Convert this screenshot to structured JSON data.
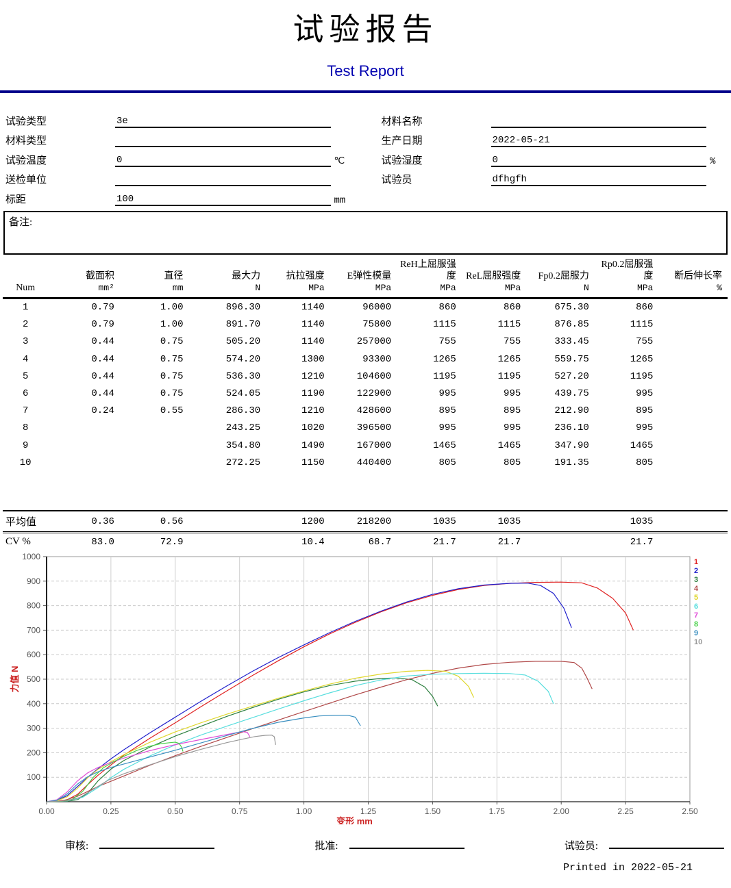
{
  "header": {
    "title_cn": "试验报告",
    "title_en": "Test Report",
    "divider_color": "#00008b"
  },
  "form": {
    "left": [
      {
        "label": "试验类型",
        "value": "3e",
        "unit": ""
      },
      {
        "label": "材料类型",
        "value": "",
        "unit": ""
      },
      {
        "label": "试验温度",
        "value": "0",
        "unit": "℃"
      },
      {
        "label": "送检单位",
        "value": "",
        "unit": ""
      },
      {
        "label": "标距",
        "value": "100",
        "unit": "mm"
      }
    ],
    "right": [
      {
        "label": "材料名称",
        "value": "",
        "unit": ""
      },
      {
        "label": "生产日期",
        "value": "2022-05-21",
        "unit": ""
      },
      {
        "label": "试验湿度",
        "value": "0",
        "unit": "%"
      },
      {
        "label": "试验员",
        "value": "dfhgfh",
        "unit": ""
      }
    ]
  },
  "remarks": {
    "label": "备注:"
  },
  "table": {
    "columns": [
      {
        "title": "Num",
        "unit": ""
      },
      {
        "title": "截面积",
        "unit": "mm²"
      },
      {
        "title": "直径",
        "unit": "mm"
      },
      {
        "title": "最大力",
        "unit": "N"
      },
      {
        "title": "抗拉强度",
        "unit": "MPa"
      },
      {
        "title": "E弹性模量",
        "unit": "MPa"
      },
      {
        "title": "ReH上屈服强度",
        "unit": "MPa"
      },
      {
        "title": "ReL屈服强度",
        "unit": "MPa"
      },
      {
        "title": "Fp0.2屈服力",
        "unit": "N"
      },
      {
        "title": "Rp0.2屈服强度",
        "unit": "MPa"
      },
      {
        "title": "断后伸长率",
        "unit": "%"
      }
    ],
    "rows": [
      [
        "1",
        "0.79",
        "1.00",
        "896.30",
        "1140",
        "96000",
        "860",
        "860",
        "675.30",
        "860",
        ""
      ],
      [
        "2",
        "0.79",
        "1.00",
        "891.70",
        "1140",
        "75800",
        "1115",
        "1115",
        "876.85",
        "1115",
        ""
      ],
      [
        "3",
        "0.44",
        "0.75",
        "505.20",
        "1140",
        "257000",
        "755",
        "755",
        "333.45",
        "755",
        ""
      ],
      [
        "4",
        "0.44",
        "0.75",
        "574.20",
        "1300",
        "93300",
        "1265",
        "1265",
        "559.75",
        "1265",
        ""
      ],
      [
        "5",
        "0.44",
        "0.75",
        "536.30",
        "1210",
        "104600",
        "1195",
        "1195",
        "527.20",
        "1195",
        ""
      ],
      [
        "6",
        "0.44",
        "0.75",
        "524.05",
        "1190",
        "122900",
        "995",
        "995",
        "439.75",
        "995",
        ""
      ],
      [
        "7",
        "0.24",
        "0.55",
        "286.30",
        "1210",
        "428600",
        "895",
        "895",
        "212.90",
        "895",
        ""
      ],
      [
        "8",
        "",
        "",
        "243.25",
        "1020",
        "396500",
        "995",
        "995",
        "236.10",
        "995",
        ""
      ],
      [
        "9",
        "",
        "",
        "354.80",
        "1490",
        "167000",
        "1465",
        "1465",
        "347.90",
        "1465",
        ""
      ],
      [
        "10",
        "",
        "",
        "272.25",
        "1150",
        "440400",
        "805",
        "805",
        "191.35",
        "805",
        ""
      ]
    ],
    "summary": [
      [
        "平均值",
        "0.36",
        "0.56",
        "",
        "1200",
        "218200",
        "1035",
        "1035",
        "",
        "1035",
        ""
      ],
      [
        "CV %",
        "83.0",
        "72.9",
        "",
        "10.4",
        "68.7",
        "21.7",
        "21.7",
        "",
        "21.7",
        ""
      ]
    ]
  },
  "chart_data": {
    "type": "line",
    "title": "",
    "xlabel": "变形  mm",
    "ylabel": "力值  N",
    "xlim": [
      0,
      2.5
    ],
    "ylim": [
      0,
      1000
    ],
    "xticks": [
      0,
      0.25,
      0.5,
      0.75,
      1,
      1.25,
      1.5,
      1.75,
      2,
      2.25,
      2.5
    ],
    "yticks": [
      100,
      200,
      300,
      400,
      500,
      600,
      700,
      800,
      900,
      1000
    ],
    "grid": true,
    "legend_position": "right-top",
    "series": [
      {
        "name": "1",
        "color": "#e02020",
        "points": [
          [
            0,
            0
          ],
          [
            0.04,
            2
          ],
          [
            0.08,
            8
          ],
          [
            0.12,
            30
          ],
          [
            0.16,
            70
          ],
          [
            0.2,
            108
          ],
          [
            0.25,
            150
          ],
          [
            0.3,
            190
          ],
          [
            0.4,
            258
          ],
          [
            0.5,
            322
          ],
          [
            0.6,
            388
          ],
          [
            0.7,
            452
          ],
          [
            0.8,
            515
          ],
          [
            0.9,
            575
          ],
          [
            1.0,
            632
          ],
          [
            1.1,
            685
          ],
          [
            1.2,
            732
          ],
          [
            1.3,
            775
          ],
          [
            1.4,
            812
          ],
          [
            1.5,
            842
          ],
          [
            1.6,
            866
          ],
          [
            1.7,
            882
          ],
          [
            1.8,
            891
          ],
          [
            1.9,
            895
          ],
          [
            2.0,
            896
          ],
          [
            2.08,
            893
          ],
          [
            2.14,
            872
          ],
          [
            2.2,
            830
          ],
          [
            2.25,
            770
          ],
          [
            2.28,
            700
          ]
        ]
      },
      {
        "name": "2",
        "color": "#2020cc",
        "points": [
          [
            0,
            0
          ],
          [
            0.04,
            5
          ],
          [
            0.08,
            25
          ],
          [
            0.12,
            62
          ],
          [
            0.16,
            100
          ],
          [
            0.2,
            135
          ],
          [
            0.25,
            175
          ],
          [
            0.3,
            212
          ],
          [
            0.4,
            280
          ],
          [
            0.5,
            345
          ],
          [
            0.6,
            410
          ],
          [
            0.7,
            472
          ],
          [
            0.8,
            532
          ],
          [
            0.9,
            588
          ],
          [
            1.0,
            640
          ],
          [
            1.1,
            690
          ],
          [
            1.2,
            736
          ],
          [
            1.3,
            778
          ],
          [
            1.4,
            815
          ],
          [
            1.5,
            846
          ],
          [
            1.6,
            869
          ],
          [
            1.7,
            884
          ],
          [
            1.8,
            891
          ],
          [
            1.87,
            892
          ],
          [
            1.92,
            882
          ],
          [
            1.97,
            850
          ],
          [
            2.01,
            790
          ],
          [
            2.04,
            710
          ]
        ]
      },
      {
        "name": "3",
        "color": "#2e8040",
        "points": [
          [
            0,
            0
          ],
          [
            0.08,
            2
          ],
          [
            0.12,
            8
          ],
          [
            0.16,
            35
          ],
          [
            0.2,
            85
          ],
          [
            0.25,
            133
          ],
          [
            0.3,
            168
          ],
          [
            0.4,
            222
          ],
          [
            0.5,
            268
          ],
          [
            0.6,
            308
          ],
          [
            0.7,
            348
          ],
          [
            0.8,
            384
          ],
          [
            0.9,
            418
          ],
          [
            1.0,
            448
          ],
          [
            1.1,
            474
          ],
          [
            1.2,
            492
          ],
          [
            1.3,
            503
          ],
          [
            1.36,
            505
          ],
          [
            1.42,
            498
          ],
          [
            1.47,
            468
          ],
          [
            1.5,
            430
          ],
          [
            1.52,
            390
          ]
        ]
      },
      {
        "name": "4",
        "color": "#b04848",
        "points": [
          [
            0,
            0
          ],
          [
            0.06,
            3
          ],
          [
            0.12,
            22
          ],
          [
            0.2,
            62
          ],
          [
            0.3,
            105
          ],
          [
            0.4,
            148
          ],
          [
            0.5,
            188
          ],
          [
            0.6,
            226
          ],
          [
            0.7,
            262
          ],
          [
            0.8,
            298
          ],
          [
            0.9,
            333
          ],
          [
            1.0,
            368
          ],
          [
            1.1,
            402
          ],
          [
            1.2,
            436
          ],
          [
            1.3,
            468
          ],
          [
            1.4,
            498
          ],
          [
            1.5,
            524
          ],
          [
            1.6,
            545
          ],
          [
            1.7,
            560
          ],
          [
            1.8,
            569
          ],
          [
            1.9,
            573
          ],
          [
            2.0,
            573
          ],
          [
            2.05,
            568
          ],
          [
            2.08,
            545
          ],
          [
            2.1,
            505
          ],
          [
            2.12,
            460
          ]
        ]
      },
      {
        "name": "5",
        "color": "#e0d830",
        "points": [
          [
            0,
            0
          ],
          [
            0.04,
            4
          ],
          [
            0.08,
            20
          ],
          [
            0.12,
            55
          ],
          [
            0.16,
            98
          ],
          [
            0.2,
            132
          ],
          [
            0.25,
            163
          ],
          [
            0.3,
            192
          ],
          [
            0.4,
            242
          ],
          [
            0.5,
            285
          ],
          [
            0.6,
            322
          ],
          [
            0.7,
            357
          ],
          [
            0.8,
            390
          ],
          [
            0.9,
            422
          ],
          [
            1.0,
            452
          ],
          [
            1.1,
            480
          ],
          [
            1.2,
            504
          ],
          [
            1.3,
            521
          ],
          [
            1.4,
            532
          ],
          [
            1.48,
            536
          ],
          [
            1.55,
            532
          ],
          [
            1.6,
            512
          ],
          [
            1.64,
            470
          ],
          [
            1.66,
            425
          ]
        ]
      },
      {
        "name": "6",
        "color": "#58dede",
        "points": [
          [
            0,
            0
          ],
          [
            0.08,
            3
          ],
          [
            0.14,
            18
          ],
          [
            0.2,
            58
          ],
          [
            0.25,
            98
          ],
          [
            0.3,
            132
          ],
          [
            0.4,
            186
          ],
          [
            0.5,
            232
          ],
          [
            0.6,
            272
          ],
          [
            0.7,
            308
          ],
          [
            0.8,
            343
          ],
          [
            0.9,
            378
          ],
          [
            1.0,
            412
          ],
          [
            1.1,
            444
          ],
          [
            1.2,
            474
          ],
          [
            1.3,
            497
          ],
          [
            1.4,
            513
          ],
          [
            1.5,
            520
          ],
          [
            1.6,
            523
          ],
          [
            1.7,
            524
          ],
          [
            1.8,
            523
          ],
          [
            1.86,
            517
          ],
          [
            1.91,
            492
          ],
          [
            1.95,
            450
          ],
          [
            1.97,
            400
          ]
        ]
      },
      {
        "name": "7",
        "color": "#e050d8",
        "points": [
          [
            0,
            0
          ],
          [
            0.04,
            8
          ],
          [
            0.08,
            40
          ],
          [
            0.12,
            85
          ],
          [
            0.16,
            118
          ],
          [
            0.2,
            140
          ],
          [
            0.25,
            160
          ],
          [
            0.3,
            178
          ],
          [
            0.4,
            208
          ],
          [
            0.5,
            233
          ],
          [
            0.6,
            254
          ],
          [
            0.7,
            274
          ],
          [
            0.74,
            282
          ],
          [
            0.76,
            286
          ],
          [
            0.78,
            283
          ],
          [
            0.79,
            265
          ]
        ]
      },
      {
        "name": "8",
        "color": "#48d048",
        "points": [
          [
            0,
            0
          ],
          [
            0.06,
            2
          ],
          [
            0.1,
            10
          ],
          [
            0.14,
            42
          ],
          [
            0.18,
            98
          ],
          [
            0.22,
            138
          ],
          [
            0.26,
            163
          ],
          [
            0.3,
            185
          ],
          [
            0.35,
            209
          ],
          [
            0.4,
            226
          ],
          [
            0.44,
            236
          ],
          [
            0.48,
            241
          ],
          [
            0.5,
            243
          ],
          [
            0.515,
            238
          ],
          [
            0.525,
            222
          ],
          [
            0.53,
            205
          ]
        ]
      },
      {
        "name": "9",
        "color": "#3a8fc0",
        "points": [
          [
            0,
            0
          ],
          [
            0.04,
            6
          ],
          [
            0.08,
            32
          ],
          [
            0.12,
            72
          ],
          [
            0.16,
            102
          ],
          [
            0.2,
            122
          ],
          [
            0.25,
            140
          ],
          [
            0.3,
            154
          ],
          [
            0.4,
            182
          ],
          [
            0.5,
            210
          ],
          [
            0.6,
            240
          ],
          [
            0.7,
            270
          ],
          [
            0.8,
            299
          ],
          [
            0.9,
            324
          ],
          [
            1.0,
            342
          ],
          [
            1.06,
            350
          ],
          [
            1.12,
            353
          ],
          [
            1.17,
            353
          ],
          [
            1.2,
            345
          ],
          [
            1.22,
            310
          ]
        ]
      },
      {
        "name": "10",
        "color": "#989898",
        "points": [
          [
            0,
            0
          ],
          [
            0.08,
            4
          ],
          [
            0.13,
            18
          ],
          [
            0.18,
            50
          ],
          [
            0.24,
            88
          ],
          [
            0.3,
            114
          ],
          [
            0.4,
            150
          ],
          [
            0.5,
            184
          ],
          [
            0.6,
            214
          ],
          [
            0.7,
            241
          ],
          [
            0.76,
            255
          ],
          [
            0.81,
            266
          ],
          [
            0.85,
            271
          ],
          [
            0.875,
            272
          ],
          [
            0.885,
            265
          ],
          [
            0.89,
            232
          ]
        ]
      }
    ]
  },
  "footer": {
    "signoffs": [
      {
        "label": "审核:"
      },
      {
        "label": "批准:"
      },
      {
        "label": "试验员:"
      }
    ],
    "printed": "Printed in 2022-05-21"
  }
}
